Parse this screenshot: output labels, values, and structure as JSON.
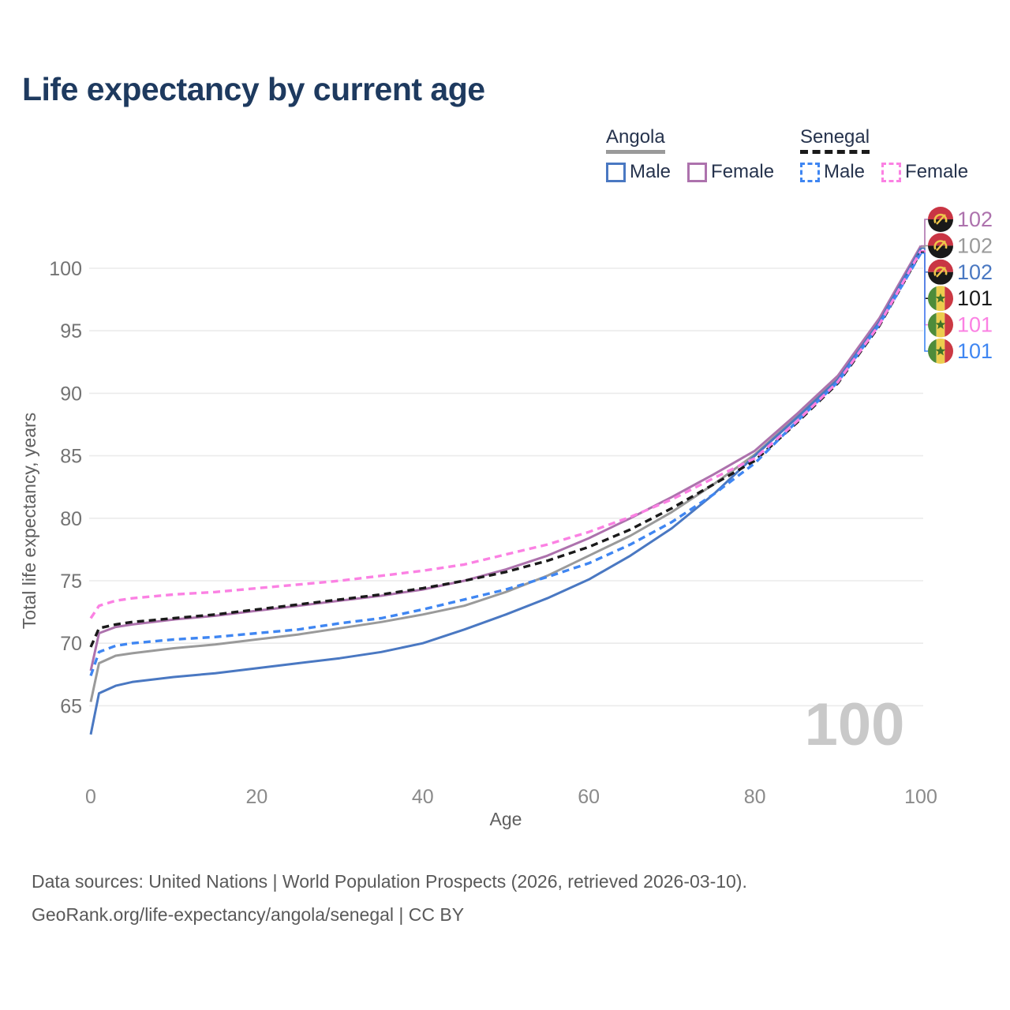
{
  "title": "Life expectancy by current age",
  "watermark": "100",
  "legend": {
    "groups": [
      {
        "label": "Angola",
        "underline_style": "solid",
        "underline_color": "#9a9a9a",
        "items": [
          {
            "label": "Male",
            "color": "#4a78c2",
            "dash": false
          },
          {
            "label": "Female",
            "color": "#ad72ad",
            "dash": false
          }
        ]
      },
      {
        "label": "Senegal",
        "underline_style": "dashed",
        "underline_color": "#1a1a1a",
        "items": [
          {
            "label": "Male",
            "color": "#3f86f2",
            "dash": true
          },
          {
            "label": "Female",
            "color": "#fb81e3",
            "dash": true
          }
        ]
      }
    ]
  },
  "chart_data": {
    "type": "line",
    "title": "Life expectancy by current age",
    "xlabel": "Age",
    "ylabel": "Total life expectancy, years",
    "xticks": [
      0,
      20,
      40,
      60,
      80,
      100
    ],
    "yticks": [
      65,
      70,
      75,
      80,
      85,
      90,
      95,
      100
    ],
    "xlim": [
      0,
      100
    ],
    "ylim": [
      62,
      103
    ],
    "grid": "horizontal",
    "legend_position": "top-right",
    "series": [
      {
        "id": "angola_total",
        "name": "Angola (both sexes)",
        "color": "#9a9a9a",
        "dash": false,
        "width": 3,
        "flag": "angola",
        "points": [
          [
            0,
            65.3
          ],
          [
            1,
            68.4
          ],
          [
            3,
            69.0
          ],
          [
            5,
            69.2
          ],
          [
            10,
            69.6
          ],
          [
            15,
            69.9
          ],
          [
            20,
            70.3
          ],
          [
            25,
            70.7
          ],
          [
            30,
            71.2
          ],
          [
            35,
            71.7
          ],
          [
            40,
            72.3
          ],
          [
            45,
            73.0
          ],
          [
            50,
            74.1
          ],
          [
            55,
            75.4
          ],
          [
            60,
            77.0
          ],
          [
            65,
            78.6
          ],
          [
            70,
            80.5
          ],
          [
            75,
            82.7
          ],
          [
            80,
            85.1
          ],
          [
            85,
            88.1
          ],
          [
            90,
            91.2
          ],
          [
            95,
            95.8
          ],
          [
            100,
            101.7
          ]
        ]
      },
      {
        "id": "angola_female",
        "name": "Angola Female",
        "color": "#ad72ad",
        "dash": false,
        "width": 3,
        "flag": "angola",
        "points": [
          [
            0,
            67.8
          ],
          [
            1,
            70.8
          ],
          [
            3,
            71.3
          ],
          [
            5,
            71.5
          ],
          [
            10,
            71.9
          ],
          [
            15,
            72.2
          ],
          [
            20,
            72.6
          ],
          [
            25,
            73.0
          ],
          [
            30,
            73.4
          ],
          [
            35,
            73.8
          ],
          [
            40,
            74.3
          ],
          [
            45,
            75.0
          ],
          [
            50,
            75.9
          ],
          [
            55,
            77.0
          ],
          [
            60,
            78.4
          ],
          [
            65,
            80.0
          ],
          [
            70,
            81.7
          ],
          [
            75,
            83.5
          ],
          [
            80,
            85.4
          ],
          [
            85,
            88.3
          ],
          [
            90,
            91.4
          ],
          [
            95,
            96.0
          ],
          [
            100,
            101.8
          ]
        ]
      },
      {
        "id": "angola_male",
        "name": "Angola Male",
        "color": "#4a78c2",
        "dash": false,
        "width": 3,
        "flag": "angola",
        "points": [
          [
            0,
            62.7
          ],
          [
            1,
            66.0
          ],
          [
            3,
            66.6
          ],
          [
            5,
            66.9
          ],
          [
            10,
            67.3
          ],
          [
            15,
            67.6
          ],
          [
            20,
            68.0
          ],
          [
            25,
            68.4
          ],
          [
            30,
            68.8
          ],
          [
            35,
            69.3
          ],
          [
            40,
            70.0
          ],
          [
            45,
            71.1
          ],
          [
            50,
            72.3
          ],
          [
            55,
            73.6
          ],
          [
            60,
            75.1
          ],
          [
            65,
            77.0
          ],
          [
            70,
            79.2
          ],
          [
            75,
            81.9
          ],
          [
            80,
            85.0
          ],
          [
            85,
            88.0
          ],
          [
            90,
            91.1
          ],
          [
            95,
            95.7
          ],
          [
            100,
            101.6
          ]
        ]
      },
      {
        "id": "senegal_total",
        "name": "Senegal (both sexes)",
        "color": "#1a1a1a",
        "dash": true,
        "width": 3.4,
        "flag": "senegal",
        "points": [
          [
            0,
            69.7
          ],
          [
            1,
            71.2
          ],
          [
            3,
            71.5
          ],
          [
            5,
            71.7
          ],
          [
            10,
            72.0
          ],
          [
            15,
            72.3
          ],
          [
            20,
            72.7
          ],
          [
            25,
            73.1
          ],
          [
            30,
            73.5
          ],
          [
            35,
            73.9
          ],
          [
            40,
            74.4
          ],
          [
            45,
            75.0
          ],
          [
            50,
            75.7
          ],
          [
            55,
            76.6
          ],
          [
            60,
            77.7
          ],
          [
            65,
            79.1
          ],
          [
            70,
            80.8
          ],
          [
            75,
            82.7
          ],
          [
            80,
            84.6
          ],
          [
            85,
            87.6
          ],
          [
            90,
            90.8
          ],
          [
            95,
            95.4
          ],
          [
            100,
            101.3
          ]
        ]
      },
      {
        "id": "senegal_male",
        "name": "Senegal Male",
        "color": "#3f86f2",
        "dash": true,
        "width": 3.4,
        "flag": "senegal",
        "points": [
          [
            0,
            67.4
          ],
          [
            1,
            69.3
          ],
          [
            3,
            69.8
          ],
          [
            5,
            70.0
          ],
          [
            10,
            70.3
          ],
          [
            15,
            70.5
          ],
          [
            20,
            70.8
          ],
          [
            25,
            71.1
          ],
          [
            30,
            71.6
          ],
          [
            35,
            72.0
          ],
          [
            40,
            72.7
          ],
          [
            45,
            73.5
          ],
          [
            50,
            74.3
          ],
          [
            55,
            75.3
          ],
          [
            60,
            76.4
          ],
          [
            65,
            77.9
          ],
          [
            70,
            79.7
          ],
          [
            75,
            81.9
          ],
          [
            80,
            84.4
          ],
          [
            85,
            87.7
          ],
          [
            90,
            90.9
          ],
          [
            95,
            95.5
          ],
          [
            100,
            101.2
          ]
        ]
      },
      {
        "id": "senegal_female",
        "name": "Senegal Female",
        "color": "#fb81e3",
        "dash": true,
        "width": 3.4,
        "flag": "senegal",
        "points": [
          [
            0,
            72.0
          ],
          [
            1,
            73.0
          ],
          [
            3,
            73.4
          ],
          [
            5,
            73.6
          ],
          [
            10,
            73.9
          ],
          [
            15,
            74.1
          ],
          [
            20,
            74.4
          ],
          [
            25,
            74.7
          ],
          [
            30,
            75.0
          ],
          [
            35,
            75.4
          ],
          [
            40,
            75.8
          ],
          [
            45,
            76.3
          ],
          [
            50,
            77.1
          ],
          [
            55,
            77.9
          ],
          [
            60,
            78.9
          ],
          [
            65,
            80.1
          ],
          [
            70,
            81.5
          ],
          [
            75,
            83.2
          ],
          [
            80,
            84.8
          ],
          [
            85,
            87.7
          ],
          [
            90,
            90.9
          ],
          [
            95,
            95.5
          ],
          [
            100,
            101.4
          ]
        ]
      }
    ],
    "end_labels": [
      {
        "series": "angola_female",
        "text": "102"
      },
      {
        "series": "angola_total",
        "text": "102"
      },
      {
        "series": "angola_male",
        "text": "102"
      },
      {
        "series": "senegal_total",
        "text": "101"
      },
      {
        "series": "senegal_female",
        "text": "101"
      },
      {
        "series": "senegal_male",
        "text": "101"
      }
    ]
  },
  "footer": {
    "line1": "Data sources: United Nations | World Population Prospects (2026, retrieved 2026-03-10).",
    "line2": "GeoRank.org/life-expectancy/angola/senegal | CC BY"
  }
}
